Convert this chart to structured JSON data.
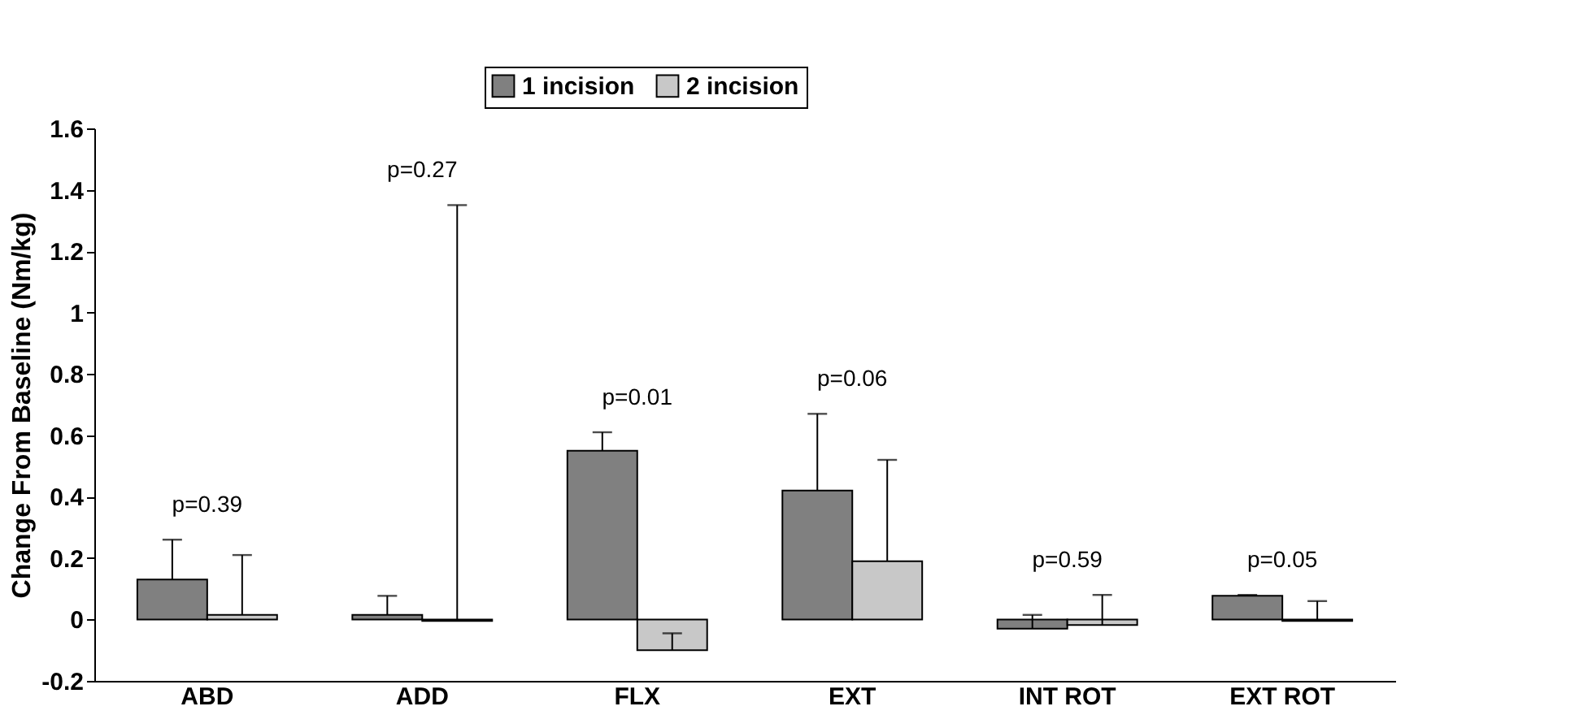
{
  "chart_data": {
    "type": "bar",
    "ylabel": "Change From Baseline (Nm/kg)",
    "categories": [
      "ABD",
      "ADD",
      "FLX",
      "EXT",
      "INT ROT",
      "EXT ROT"
    ],
    "series": [
      {
        "name": "1 incision",
        "color": "#808080",
        "values": [
          0.13,
          0.015,
          0.55,
          0.42,
          -0.03,
          0.077
        ],
        "errors": [
          [
            0.13,
            0.26
          ],
          [
            0.015,
            0.077
          ],
          [
            0.55,
            0.61
          ],
          [
            0.42,
            0.67
          ],
          [
            -0.03,
            0.015
          ],
          [
            0.077,
            0.08
          ]
        ]
      },
      {
        "name": "2 incision",
        "color": "#c8c8c8",
        "values": [
          0.015,
          -0.005,
          -0.1,
          0.19,
          -0.018,
          -0.005
        ],
        "errors": [
          [
            0.015,
            0.21
          ],
          [
            -0.005,
            1.35
          ],
          [
            -0.1,
            -0.045
          ],
          [
            0.19,
            0.52
          ],
          [
            -0.018,
            0.08
          ],
          [
            -0.005,
            0.06
          ]
        ]
      }
    ],
    "ylim": [
      -0.2,
      1.6
    ],
    "yticks": [
      -0.2,
      0,
      0.2,
      0.4,
      0.6,
      0.8,
      1,
      1.2,
      1.4,
      1.6
    ],
    "annotations": [
      "p=0.39",
      "p=0.27",
      "p=0.01",
      "p=0.06",
      "p=0.59",
      "p=0.05"
    ],
    "legend": "top",
    "grid": false
  }
}
